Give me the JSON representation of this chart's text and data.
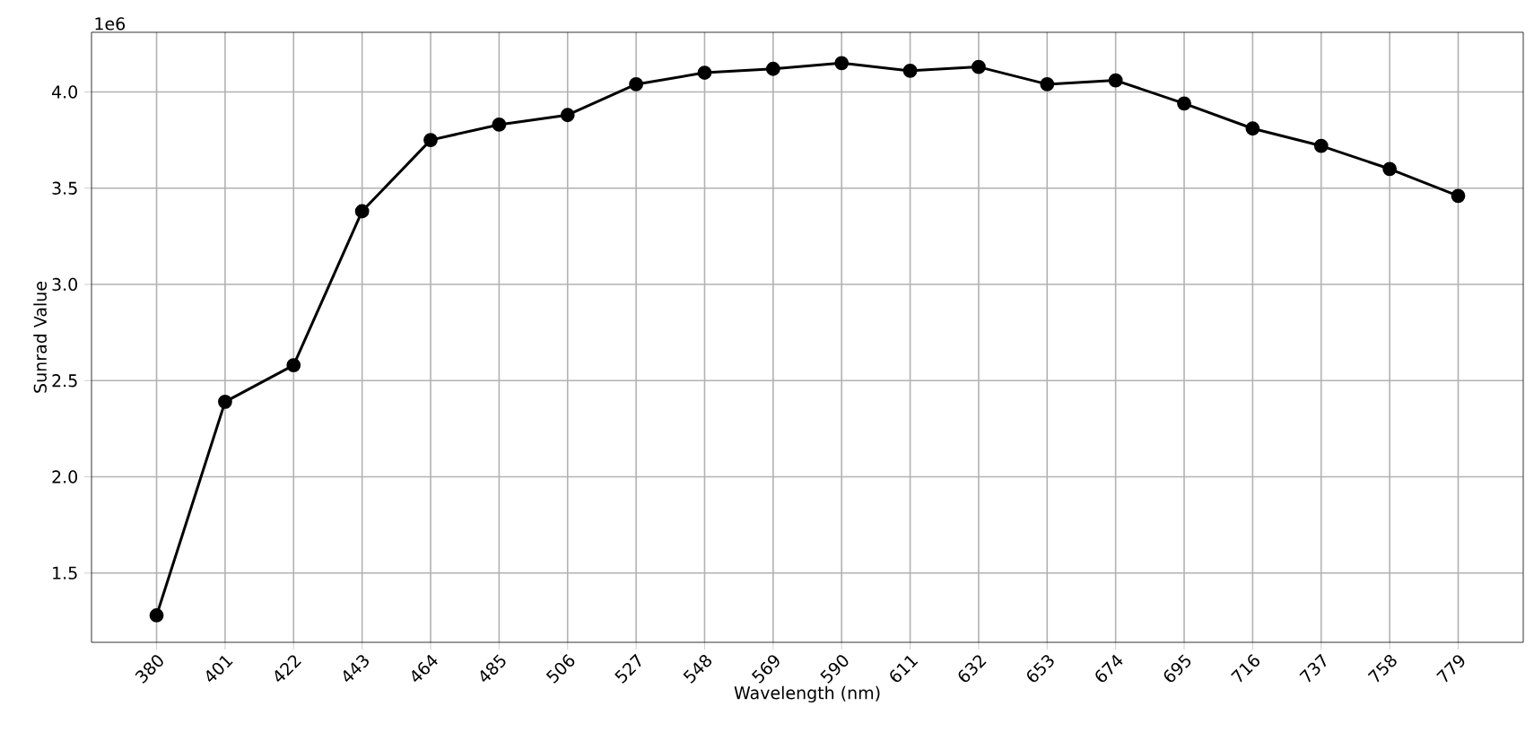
{
  "chart_data": {
    "type": "line",
    "xlabel": "Wavelength (nm)",
    "ylabel": "Sunrad Value",
    "annotations": [
      "1e6"
    ],
    "x": [
      380,
      401,
      422,
      443,
      464,
      485,
      506,
      527,
      548,
      569,
      590,
      611,
      632,
      653,
      674,
      695,
      716,
      737,
      758,
      779
    ],
    "series": [
      {
        "color": "#000000",
        "values": [
          1.28,
          2.39,
          2.58,
          3.38,
          3.75,
          3.83,
          3.88,
          4.04,
          4.1,
          4.12,
          4.15,
          4.11,
          4.13,
          4.04,
          4.06,
          3.94,
          3.81,
          3.72,
          3.6,
          3.46
        ]
      }
    ],
    "xlim": [
      360.05,
      798.95
    ],
    "ylim": [
      1.14,
      4.31
    ],
    "xticks": [
      380,
      401,
      422,
      443,
      464,
      485,
      506,
      527,
      548,
      569,
      590,
      611,
      632,
      653,
      674,
      695,
      716,
      737,
      758,
      779
    ],
    "yticks": [
      {
        "value": 1.5,
        "label": "1.5"
      },
      {
        "value": 2.0,
        "label": "2.0"
      },
      {
        "value": 2.5,
        "label": "2.5"
      },
      {
        "value": 3.0,
        "label": "3.0"
      },
      {
        "value": 3.5,
        "label": "3.5"
      },
      {
        "value": 4.0,
        "label": "4.0"
      }
    ],
    "grid": true,
    "marker": "circle",
    "line_style": "solid"
  }
}
